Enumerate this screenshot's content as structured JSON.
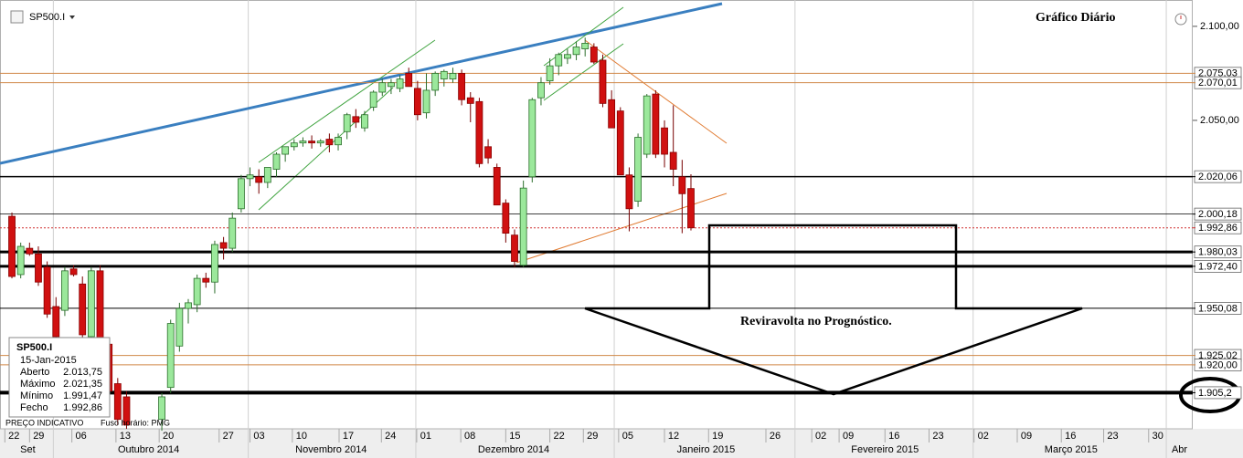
{
  "chart_data": {
    "type": "candlestick",
    "symbol": "SP500.I",
    "title": "Gráfico Diário",
    "annotation": "Reviravolta no Prognóstico.",
    "footer": [
      "PREÇO INDICATIVO",
      "Fuso horário: PMG"
    ],
    "x": [
      2,
      3,
      4,
      5,
      6,
      7,
      8,
      9,
      10,
      11,
      12,
      13,
      14,
      15,
      19,
      20,
      21,
      22,
      23,
      24,
      25,
      26,
      27,
      28,
      29,
      30,
      31,
      32,
      33,
      34,
      35,
      36,
      37,
      38,
      39,
      40,
      41,
      42,
      43,
      44,
      45,
      46,
      47,
      48,
      49,
      50,
      51,
      52,
      53,
      54,
      55,
      56,
      57,
      58,
      59,
      60,
      61,
      62,
      63,
      64,
      65,
      66,
      67,
      68,
      69,
      70,
      71,
      72,
      73,
      74,
      75,
      76,
      77,
      78,
      79
    ],
    "open": [
      1999,
      1968,
      1982,
      1979,
      1972,
      1951,
      1949,
      1971,
      1963,
      1935,
      1970,
      1931,
      1910,
      1903,
      1891,
      1908,
      1930,
      1950,
      1952,
      1966,
      1964,
      1985,
      1982,
      2003,
      2019,
      2020,
      2017,
      2024,
      2032,
      2036,
      2038,
      2039,
      2038,
      2040,
      2037,
      2044,
      2052,
      2046,
      2057,
      2065,
      2068,
      2067,
      2075,
      2067,
      2054,
      2066,
      2072,
      2072,
      2075,
      2062,
      2060,
      2036,
      2025,
      2006,
      1989,
      1973,
      2020,
      2062,
      2071,
      2079,
      2083,
      2085,
      2088,
      2089,
      2082,
      2061,
      2055,
      2021,
      2007,
      2032,
      2064,
      2046,
      2033,
      2020,
      2013.75
    ],
    "high": [
      2001,
      1985,
      1985,
      1983,
      1975,
      1956,
      1972,
      1973,
      1967,
      1972,
      1973,
      1934,
      1913,
      1906,
      1905,
      1944,
      1953,
      1955,
      1968,
      1969,
      1986,
      1988,
      2001,
      2021,
      2025,
      2024,
      2025,
      2033,
      2036,
      2040,
      2041,
      2042,
      2040,
      2043,
      2043,
      2054,
      2056,
      2055,
      2066,
      2072,
      2072,
      2074,
      2078,
      2071,
      2075,
      2076,
      2077,
      2078,
      2077,
      2065,
      2062,
      2040,
      2027,
      2008,
      1992,
      2018,
      2062,
      2073,
      2083,
      2086,
      2088,
      2092,
      2094,
      2091,
      2085,
      2066,
      2057,
      2025,
      2043,
      2064,
      2066,
      2050,
      2058,
      2029,
      2021.35
    ],
    "low": [
      1966,
      1966,
      1978,
      1962,
      1945,
      1928,
      1946,
      1967,
      1934,
      1932,
      1928,
      1904,
      1888,
      1886,
      1885,
      1905,
      1927,
      1942,
      1948,
      1961,
      1958,
      1976,
      1980,
      2001,
      2015,
      2011,
      2014,
      2020,
      2028,
      2034,
      2036,
      2035,
      2036,
      2033,
      2034,
      2040,
      2046,
      2044,
      2055,
      2063,
      2064,
      2065,
      2068,
      2050,
      2051,
      2063,
      2068,
      2070,
      2058,
      2049,
      2025,
      2027,
      2005,
      1985,
      1972,
      1972,
      2017,
      2058,
      2069,
      2074,
      2080,
      2082,
      2084,
      2080,
      2057,
      2046,
      2021,
      1991,
      2004,
      2030,
      2030,
      2025,
      2015,
      1990,
      1991.47
    ],
    "close": [
      1967,
      1983,
      1979,
      1964,
      1947,
      1935,
      1970,
      1968,
      1936,
      1970,
      1931,
      1906,
      1891,
      1888,
      1903,
      1942,
      1950,
      1953,
      1966,
      1964,
      1984,
      1982,
      1998,
      2019,
      2021,
      2017,
      2025,
      2032,
      2036,
      2038,
      2039,
      2038,
      2039,
      2037,
      2041,
      2053,
      2049,
      2053,
      2065,
      2070,
      2070,
      2072,
      2068,
      2053,
      2066,
      2075,
      2076,
      2075,
      2061,
      2059,
      2027,
      2030,
      2005,
      1990,
      1975,
      2014,
      2061,
      2070,
      2079,
      2085,
      2085,
      2089,
      2091,
      2081,
      2059,
      2046,
      2021,
      2003,
      2041,
      2063,
      2032,
      2032,
      2024,
      2011,
      1992.86
    ],
    "up_color": "#9be89b",
    "down_color": "#d01010",
    "xlim": [
      0.65,
      135.9
    ],
    "ylim": [
      1886,
      2114
    ],
    "yticks": [
      {
        "value": 2100,
        "label": "2.100,00"
      },
      {
        "value": 2050,
        "label": "2.050,00"
      }
    ],
    "levels": [
      {
        "value": 2075.03,
        "label": "2.075,03",
        "color": "#d08848",
        "width": 1
      },
      {
        "value": 2070.01,
        "label": "2.070,01",
        "color": "#d08848",
        "width": 1
      },
      {
        "value": 2020.06,
        "label": "2.020,06",
        "color": "#000000",
        "width": 1.5
      },
      {
        "value": 2000.18,
        "label": "2.000,18",
        "color": "#000000",
        "width": 0.8
      },
      {
        "value": 1992.86,
        "label": "1.992,86",
        "color": "#d03030",
        "width": 1,
        "dash": true
      },
      {
        "value": 1980.03,
        "label": "1.980,03",
        "color": "#000000",
        "width": 3
      },
      {
        "value": 1972.4,
        "label": "1.972,40",
        "color": "#000000",
        "width": 3
      },
      {
        "value": 1950.08,
        "label": "1.950,08",
        "color": "#000000",
        "width": 1
      },
      {
        "value": 1925.02,
        "label": "1.925,02",
        "color": "#d08848",
        "width": 1
      },
      {
        "value": 1920,
        "label": "1.920,00",
        "color": "#d08848",
        "width": 1
      },
      {
        "value": 1905.2,
        "label": "1.905,2",
        "color": "#000000",
        "width": 4
      }
    ],
    "xticks": [
      {
        "value": 1.2,
        "label": "22"
      },
      {
        "value": 4,
        "label": "29"
      },
      {
        "value": 8.8,
        "label": "06"
      },
      {
        "value": 13.8,
        "label": "13"
      },
      {
        "value": 18.7,
        "label": "20"
      },
      {
        "value": 25.5,
        "label": "27"
      },
      {
        "value": 29,
        "label": "03"
      },
      {
        "value": 33.8,
        "label": "10"
      },
      {
        "value": 39.1,
        "label": "17"
      },
      {
        "value": 43.9,
        "label": "24"
      },
      {
        "value": 47.9,
        "label": "01"
      },
      {
        "value": 52.9,
        "label": "08"
      },
      {
        "value": 58,
        "label": "15"
      },
      {
        "value": 63,
        "label": "22"
      },
      {
        "value": 66.8,
        "label": "29"
      },
      {
        "value": 70.8,
        "label": "05"
      },
      {
        "value": 76,
        "label": "12"
      },
      {
        "value": 81,
        "label": "19"
      },
      {
        "value": 87.5,
        "label": "26"
      },
      {
        "value": 92.7,
        "label": "02"
      },
      {
        "value": 95.8,
        "label": "09"
      },
      {
        "value": 101,
        "label": "16"
      },
      {
        "value": 106,
        "label": "23"
      },
      {
        "value": 111.1,
        "label": "02"
      },
      {
        "value": 116,
        "label": "09"
      },
      {
        "value": 121,
        "label": "16"
      },
      {
        "value": 125.8,
        "label": "23"
      },
      {
        "value": 130.9,
        "label": "30"
      }
    ],
    "month_ticks": [
      {
        "value": 3.8,
        "label": "Set"
      },
      {
        "value": 17.5,
        "label": "Outubro 2014"
      },
      {
        "value": 38.2,
        "label": "Novembro 2014"
      },
      {
        "value": 58.9,
        "label": "Dezembro 2014"
      },
      {
        "value": 80.7,
        "label": "Janeiro 2015"
      },
      {
        "value": 101,
        "label": "Fevereiro 2015"
      },
      {
        "value": 122.1,
        "label": "Março 2015"
      },
      {
        "value": 134.4,
        "label": "Abr"
      }
    ],
    "month_dividers": [
      6.7,
      28.8,
      47.8,
      70.3,
      90.8,
      111,
      132.9
    ],
    "info_box": {
      "symbol": "SP500.I",
      "date": "15-Jan-2015",
      "rows": [
        {
          "label": "Aberto",
          "value": "2.013,75"
        },
        {
          "label": "Máximo",
          "value": "2.021,35"
        },
        {
          "label": "Mínimo",
          "value": "1.991,47"
        },
        {
          "label": "Fecho",
          "value": "1.992,86"
        }
      ]
    }
  }
}
